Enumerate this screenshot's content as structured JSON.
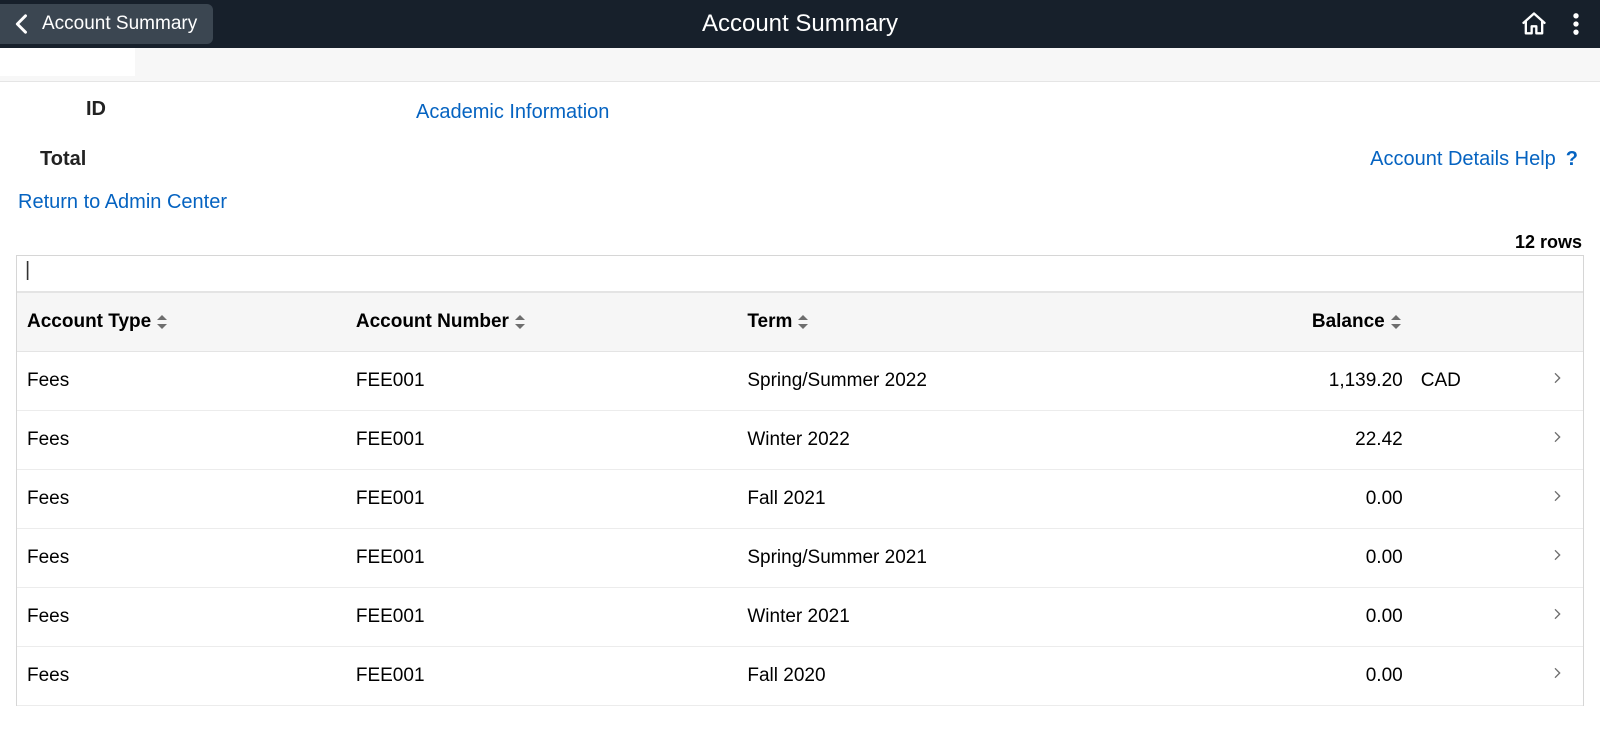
{
  "header": {
    "back_label": "Account Summary",
    "title": "Account Summary"
  },
  "info": {
    "id_label": "ID",
    "academic_link": "Academic Information",
    "total_label": "Total",
    "help_link": "Account Details Help"
  },
  "return_link": "Return to Admin Center",
  "table": {
    "row_count_label": "12 rows",
    "columns": {
      "account_type": "Account Type",
      "account_number": "Account Number",
      "term": "Term",
      "balance": "Balance"
    },
    "column_widths": [
      "21%",
      "25%",
      "33%",
      "10%",
      "6%",
      "5%"
    ],
    "rows": [
      {
        "type": "Fees",
        "number": "FEE001",
        "term": "Spring/Summer 2022",
        "balance": "1,139.20",
        "currency": "CAD"
      },
      {
        "type": "Fees",
        "number": "FEE001",
        "term": "Winter 2022",
        "balance": "22.42",
        "currency": ""
      },
      {
        "type": "Fees",
        "number": "FEE001",
        "term": "Fall 2021",
        "balance": "0.00",
        "currency": ""
      },
      {
        "type": "Fees",
        "number": "FEE001",
        "term": "Spring/Summer 2021",
        "balance": "0.00",
        "currency": ""
      },
      {
        "type": "Fees",
        "number": "FEE001",
        "term": "Winter 2021",
        "balance": "0.00",
        "currency": ""
      },
      {
        "type": "Fees",
        "number": "FEE001",
        "term": "Fall 2020",
        "balance": "0.00",
        "currency": ""
      }
    ]
  },
  "colors": {
    "topbar_bg": "#17202b",
    "link": "#0563c1",
    "header_bg": "#f6f6f6",
    "border": "#e4e4e4"
  }
}
